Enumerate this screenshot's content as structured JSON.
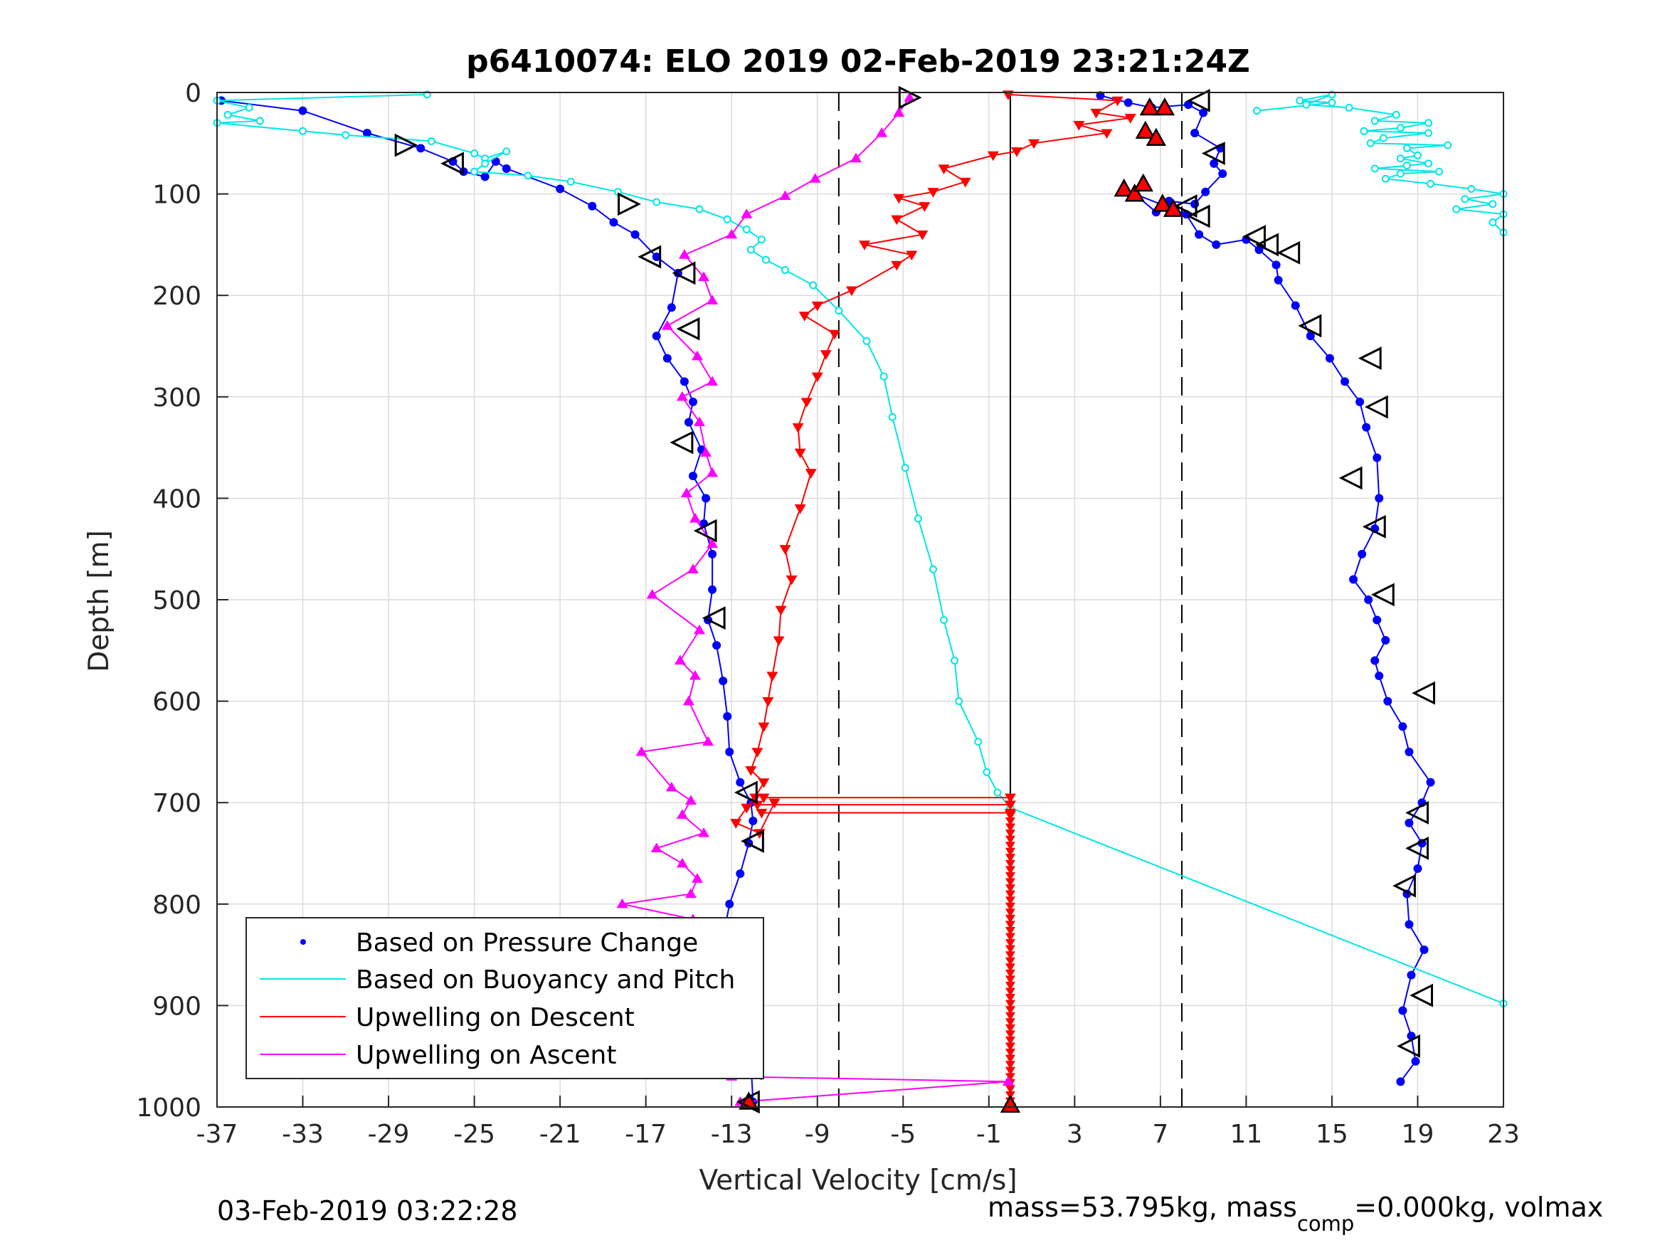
{
  "chart_data": {
    "type": "scatter",
    "title": "p6410074: ELO 2019 02-Feb-2019 23:21:24Z",
    "xlabel": "Vertical Velocity [cm/s]",
    "ylabel": "Depth [m]",
    "xlim": [
      -37,
      23
    ],
    "ylim": [
      0,
      1000
    ],
    "y_reversed": true,
    "grid": true,
    "xticks": [
      "-37",
      "-33",
      "-29",
      "-25",
      "-21",
      "-17",
      "-13",
      "-9",
      "-5",
      "-1",
      "3",
      "7",
      "11",
      "15",
      "19",
      "23"
    ],
    "yticks": [
      "0",
      "100",
      "200",
      "300",
      "400",
      "500",
      "600",
      "700",
      "800",
      "900",
      "1000"
    ],
    "reference_lines": [
      {
        "x": -8,
        "style": "dashed",
        "color": "#000000"
      },
      {
        "x": 0,
        "style": "solid",
        "color": "#000000"
      },
      {
        "x": 8,
        "style": "dashed",
        "color": "#000000"
      }
    ],
    "legend_position": "bottom-left",
    "series": [
      {
        "name": "Based on Pressure Change",
        "color": "#0000ff",
        "marker": "dot",
        "segments": [
          {
            "x": [
              -36.8,
              -33,
              -30,
              -27.5,
              -26,
              -25.5,
              -24.5,
              -24,
              -23.5,
              -21,
              -19.5,
              -18.5,
              -17.5,
              -16.5,
              -15.5,
              -15.8,
              -16.5,
              -16,
              -15.2,
              -14.8,
              -15,
              -14.4,
              -14.8,
              -14.2,
              -14.3,
              -13.9,
              -13.9,
              -14.1,
              -13.7,
              -13.4,
              -13.2,
              -13.1,
              -12.6,
              -12.1,
              -12.0,
              -12.2,
              -12.6,
              -13.1,
              -13.4,
              -12.7,
              -12.2,
              -12.0
            ],
            "y": [
              8,
              18,
              40,
              55,
              68,
              78,
              83,
              68,
              75,
              95,
              112,
              128,
              140,
              162,
              178,
              212,
              240,
              262,
              285,
              305,
              325,
              352,
              378,
              400,
              425,
              455,
              490,
              520,
              545,
              580,
              615,
              650,
              680,
              700,
              718,
              740,
              770,
              800,
              835,
              870,
              915,
              995
            ]
          },
          {
            "x": [
              4.2,
              5.5,
              6.6,
              8.3,
              9.0,
              8.6,
              9.8,
              9.5,
              9.9,
              9.1,
              8.6,
              7.4,
              6.8,
              5.8,
              8.2,
              8.8,
              9.6,
              11.0,
              11.6,
              12.4,
              12.5,
              13.3,
              14.0,
              14.9,
              15.6,
              16.3,
              16.6,
              17.1,
              17.2,
              17.0,
              16.4,
              16.0,
              16.7,
              17.1,
              17.5,
              17.0,
              17.2,
              17.6,
              18.3,
              18.6,
              19.6,
              19.2,
              18.6,
              19.2,
              19.0,
              18.5,
              18.6,
              19.3,
              18.7,
              18.3,
              18.7,
              18.9,
              18.2
            ],
            "y": [
              3,
              10,
              15,
              12,
              20,
              40,
              55,
              70,
              80,
              98,
              110,
              107,
              118,
              100,
              120,
              140,
              150,
              145,
              155,
              170,
              185,
              210,
              240,
              262,
              285,
              305,
              330,
              360,
              400,
              430,
              455,
              480,
              500,
              520,
              540,
              560,
              575,
              600,
              625,
              650,
              680,
              700,
              720,
              740,
              765,
              790,
              820,
              845,
              870,
              905,
              930,
              955,
              975
            ]
          }
        ]
      },
      {
        "name": "Based on Buoyancy and Pitch",
        "color": "#00e6e6",
        "marker": "circle",
        "segments": [
          {
            "x": [
              -27.2,
              -37,
              -35.5,
              -36.5,
              -35,
              -37,
              -33,
              -31,
              -27,
              -25,
              -24.5,
              -23.5,
              -24.5,
              -25,
              -22.5,
              -20.5,
              -18.3,
              -16.5,
              -14.5,
              -13.2,
              -12.3,
              -11.6,
              -12.1,
              -11.4,
              -10.5,
              -9.2,
              -8.0,
              -6.7,
              -5.9,
              -5.5,
              -4.9,
              -4.3,
              -3.6,
              -3.1,
              -2.6,
              -2.4,
              -1.5,
              -1.1,
              -0.6,
              0.0
            ],
            "y": [
              2,
              8,
              15,
              22,
              28,
              30,
              38,
              42,
              48,
              60,
              65,
              58,
              70,
              78,
              82,
              88,
              98,
              108,
              115,
              125,
              135,
              145,
              155,
              165,
              175,
              190,
              215,
              245,
              280,
              320,
              370,
              420,
              470,
              520,
              560,
              600,
              640,
              670,
              690,
              705
            ]
          },
          {
            "x": [
              0.0,
              23
            ],
            "y": [
              705,
              898
            ]
          },
          {
            "x": [
              11.5,
              15.0,
              13.5,
              15.0,
              13.8,
              15.8,
              18.0,
              17.0,
              19.5,
              18.2,
              16.5,
              19.5,
              17.4,
              16.8,
              20.4,
              18.5,
              19.0,
              18.2,
              19.5,
              18.5,
              17.0,
              20.0,
              18.2,
              17.5,
              19.6,
              21.5,
              23.0,
              21.2,
              22.5,
              20.8,
              23.0,
              22.5,
              23.0
            ],
            "y": [
              18,
              10,
              8,
              2,
              12,
              15,
              22,
              28,
              30,
              35,
              38,
              40,
              45,
              50,
              52,
              55,
              62,
              65,
              70,
              72,
              75,
              78,
              80,
              85,
              90,
              95,
              100,
              105,
              110,
              115,
              120,
              128,
              138
            ]
          }
        ]
      },
      {
        "name": "Upwelling on Descent",
        "color": "#ff0000",
        "marker": "triangle-down",
        "segments": [
          {
            "x": [
              -0.1,
              5.0,
              4.0,
              5.6,
              3.2,
              4.5,
              1.1,
              0.3,
              -0.8,
              -3.1,
              -2.1,
              -3.6,
              -5.2,
              -4.0,
              -5.3,
              -4.1,
              -6.8,
              -4.6,
              -5.3,
              -7.4,
              -9.0,
              -9.6,
              -8.2,
              -8.6,
              -9.0,
              -9.5,
              -9.9,
              -9.8,
              -9.3,
              -9.8,
              -10.5,
              -10.2,
              -10.7,
              -10.8,
              -11.1,
              -11.3,
              -11.5,
              -11.8,
              -12.1,
              -11.5,
              -11.9,
              -12.3,
              -12.8,
              -11.7,
              -11.0
            ],
            "y": [
              2,
              8,
              20,
              25,
              32,
              40,
              50,
              58,
              62,
              75,
              88,
              98,
              104,
              112,
              125,
              140,
              150,
              160,
              170,
              195,
              210,
              220,
              238,
              258,
              280,
              305,
              330,
              355,
              375,
              410,
              450,
              480,
              510,
              540,
              575,
              600,
              625,
              650,
              668,
              680,
              695,
              705,
              720,
              730,
              700
            ]
          },
          {
            "x": [
              -11.5,
              0.0
            ],
            "y": [
              695,
              695
            ]
          },
          {
            "x": [
              -11.8,
              0.0
            ],
            "y": [
              702,
              702
            ]
          },
          {
            "x": [
              -11.6,
              0.0
            ],
            "y": [
              710,
              710
            ]
          },
          {
            "x": [
              0.0,
              0.0
            ],
            "y": [
              712,
              1000
            ]
          }
        ]
      },
      {
        "name": "Upwelling on Ascent",
        "color": "#ff00ff",
        "marker": "triangle-up",
        "segments": [
          {
            "x": [
              -12.6,
              -0.1,
              -13.0,
              -14.3,
              -15.1,
              -18.5,
              -15.0,
              -15.6,
              -14.1,
              -14.5,
              -19.2,
              -14.8,
              -14.0,
              -17.0,
              -14.3,
              -14.8,
              -18.1,
              -14.9,
              -14.6,
              -15.3,
              -16.5,
              -14.3,
              -15.3,
              -14.9,
              -15.8,
              -17.2,
              -14.1,
              -15.0,
              -14.7,
              -15.4,
              -14.5,
              -16.7,
              -14.8,
              -13.9,
              -14.7,
              -15.1,
              -13.9,
              -14.2,
              -14.5,
              -15.3,
              -13.9,
              -14.6,
              -16.0,
              -13.9,
              -14.3,
              -15.2,
              -13.0,
              -12.3,
              -10.5,
              -9.1,
              -7.2,
              -6.0,
              -5.2,
              -4.7
            ],
            "y": [
              995,
              975,
              970,
              960,
              945,
              938,
              930,
              918,
              905,
              895,
              888,
              875,
              860,
              842,
              830,
              815,
              800,
              790,
              775,
              760,
              745,
              730,
              712,
              698,
              685,
              650,
              640,
              600,
              575,
              560,
              530,
              495,
              470,
              445,
              420,
              395,
              375,
              355,
              325,
              300,
              285,
              260,
              230,
              205,
              182,
              160,
              140,
              120,
              102,
              85,
              65,
              40,
              20,
              5
            ]
          }
        ]
      }
    ],
    "turn_markers": {
      "color": "#000000",
      "left": [
        [
          -26,
          70
        ],
        [
          -16.8,
          162
        ],
        [
          -15.2,
          178
        ],
        [
          -15.0,
          233
        ],
        [
          -15.3,
          345
        ],
        [
          -14.2,
          432
        ],
        [
          -13.8,
          518
        ],
        [
          -12.3,
          690
        ],
        [
          -12.0,
          738
        ],
        [
          -12.8,
          862
        ],
        [
          -12.1,
          962
        ],
        [
          -12.2,
          995
        ],
        [
          8.8,
          8
        ],
        [
          9.5,
          60
        ],
        [
          8.2,
          112
        ],
        [
          8.8,
          122
        ],
        [
          11.4,
          142
        ],
        [
          12.0,
          150
        ],
        [
          13.0,
          158
        ],
        [
          14.0,
          230
        ],
        [
          16.8,
          262
        ],
        [
          17.1,
          310
        ],
        [
          15.9,
          380
        ],
        [
          17.0,
          428
        ],
        [
          17.4,
          495
        ],
        [
          19.3,
          592
        ],
        [
          19.0,
          710
        ],
        [
          19.0,
          745
        ],
        [
          18.4,
          782
        ],
        [
          19.2,
          890
        ],
        [
          18.6,
          940
        ]
      ],
      "right": [
        [
          -28.2,
          52
        ],
        [
          -17.8,
          110
        ],
        [
          -4.7,
          5
        ]
      ]
    },
    "red_highlight_markers": [
      [
        6.5,
        15
      ],
      [
        7.2,
        15
      ],
      [
        6.3,
        38
      ],
      [
        6.8,
        45
      ],
      [
        5.3,
        95
      ],
      [
        5.8,
        100
      ],
      [
        6.2,
        90
      ],
      [
        7.1,
        110
      ],
      [
        7.6,
        115
      ],
      [
        -12.2,
        995
      ],
      [
        0.0,
        998
      ]
    ]
  },
  "legend": {
    "items": [
      {
        "label": "Based on Pressure Change",
        "color": "#0000ff",
        "symbol": "dot"
      },
      {
        "label": "Based on Buoyancy and Pitch",
        "color": "#00e6e6",
        "symbol": "line"
      },
      {
        "label": "Upwelling on Descent",
        "color": "#ff0000",
        "symbol": "line"
      },
      {
        "label": "Upwelling on Ascent",
        "color": "#ff00ff",
        "symbol": "line"
      }
    ]
  },
  "footer": {
    "date": "03-Feb-2019 03:22:28",
    "mass_prefix": "mass=53.795kg, mass",
    "mass_sub": "comp",
    "mass_suffix": "=0.000kg, volmax"
  }
}
